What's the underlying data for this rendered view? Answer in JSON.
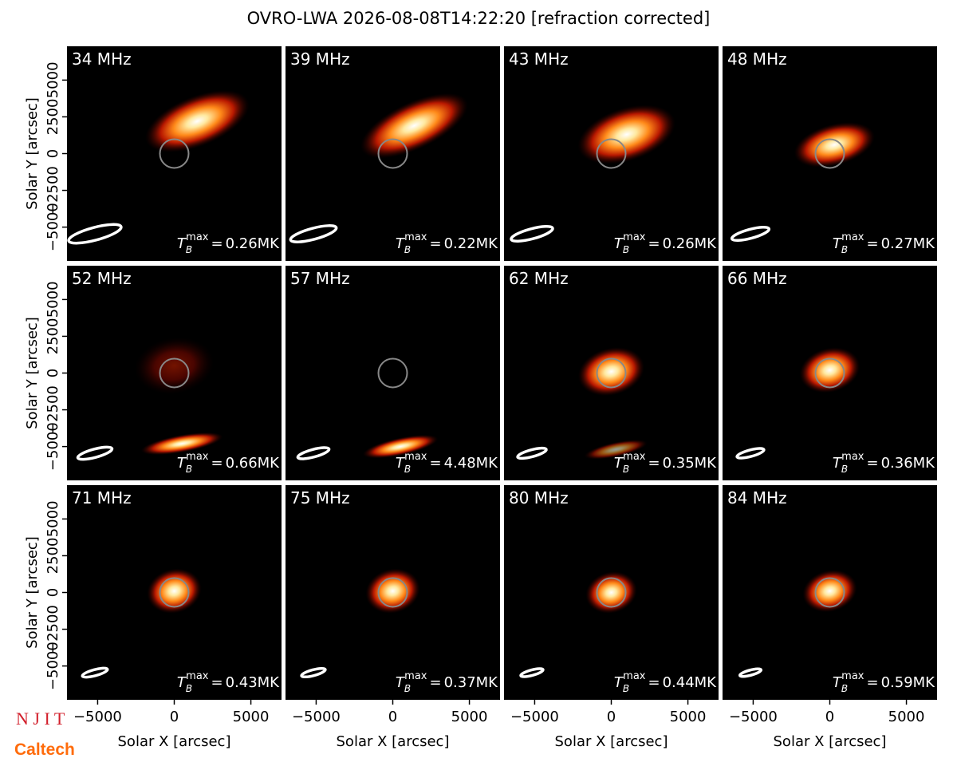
{
  "chart_data": {
    "type": "image-grid",
    "title": "OVRO-LWA 2026-08-08T14:22:20 [refraction corrected]",
    "xlabel": "Solar X [arcsec]",
    "ylabel": "Solar Y [arcsec]",
    "xlim": [
      -7000,
      7000
    ],
    "ylim": [
      -7300,
      7300
    ],
    "xticks": [
      {
        "value": -5000,
        "label": "−5000"
      },
      0,
      5000
    ],
    "yticks": [
      {
        "value": -5000,
        "label": "−5000"
      },
      {
        "value": -2500,
        "label": "−2500"
      },
      0,
      2500,
      5000
    ],
    "tmax_symbol": {
      "base": "T",
      "sub": "B",
      "sup": "max",
      "eq": "="
    },
    "logos": [
      "N J I T",
      "Caltech"
    ],
    "panels": [
      {
        "freq": {
          "value": 34,
          "label": "34 MHz"
        },
        "tmax": "0.26MK",
        "sources": [
          {
            "x": 1500,
            "y": 2200,
            "sx": 3600,
            "sy": 1700,
            "tilt": 22,
            "intensity": 1
          }
        ]
      },
      {
        "freq": {
          "value": 39,
          "label": "39 MHz"
        },
        "tmax": "0.22MK",
        "sources": [
          {
            "x": 1400,
            "y": 1900,
            "sx": 3800,
            "sy": 1600,
            "tilt": 25,
            "intensity": 1
          }
        ]
      },
      {
        "freq": {
          "value": 43,
          "label": "43 MHz"
        },
        "tmax": "0.26MK",
        "sources": [
          {
            "x": 1000,
            "y": 1300,
            "sx": 3300,
            "sy": 1800,
            "tilt": 18,
            "intensity": 1
          }
        ]
      },
      {
        "freq": {
          "value": 48,
          "label": "48 MHz"
        },
        "tmax": "0.27MK",
        "sources": [
          {
            "x": 300,
            "y": 600,
            "sx": 2700,
            "sy": 1400,
            "tilt": 15,
            "intensity": 1
          }
        ]
      },
      {
        "freq": {
          "value": 52,
          "label": "52 MHz"
        },
        "tmax": "0.66MK",
        "sources": [
          {
            "x": 0,
            "y": 500,
            "sx": 2600,
            "sy": 1900,
            "tilt": 10,
            "intensity": 0.45
          },
          {
            "x": 500,
            "y": -4800,
            "sx": 2700,
            "sy": 600,
            "tilt": 10,
            "intensity": 1
          }
        ]
      },
      {
        "freq": {
          "value": 57,
          "label": "57 MHz"
        },
        "tmax": "4.48MK",
        "sources": [
          {
            "x": 500,
            "y": -5000,
            "sx": 2500,
            "sy": 600,
            "tilt": 12,
            "intensity": 1
          }
        ]
      },
      {
        "freq": {
          "value": 62,
          "label": "62 MHz"
        },
        "tmax": "0.35MK",
        "sources": [
          {
            "x": 0,
            "y": 100,
            "sx": 2200,
            "sy": 1600,
            "tilt": 15,
            "intensity": 1
          },
          {
            "x": 300,
            "y": -5200,
            "sx": 2100,
            "sy": 500,
            "tilt": 12,
            "intensity": 0.6
          }
        ]
      },
      {
        "freq": {
          "value": 66,
          "label": "66 MHz"
        },
        "tmax": "0.36MK",
        "sources": [
          {
            "x": 0,
            "y": 200,
            "sx": 2000,
            "sy": 1500,
            "tilt": 15,
            "intensity": 1
          }
        ]
      },
      {
        "freq": {
          "value": 71,
          "label": "71 MHz"
        },
        "tmax": "0.43MK",
        "sources": [
          {
            "x": 0,
            "y": 100,
            "sx": 1800,
            "sy": 1500,
            "tilt": 15,
            "intensity": 1
          }
        ]
      },
      {
        "freq": {
          "value": 75,
          "label": "75 MHz"
        },
        "tmax": "0.37MK",
        "sources": [
          {
            "x": 0,
            "y": 100,
            "sx": 1800,
            "sy": 1500,
            "tilt": 15,
            "intensity": 1
          }
        ]
      },
      {
        "freq": {
          "value": 80,
          "label": "80 MHz"
        },
        "tmax": "0.44MK",
        "sources": [
          {
            "x": 0,
            "y": 0,
            "sx": 1700,
            "sy": 1400,
            "tilt": 15,
            "intensity": 1
          }
        ]
      },
      {
        "freq": {
          "value": 84,
          "label": "84 MHz"
        },
        "tmax": "0.59MK",
        "sources": [
          {
            "x": 0,
            "y": 100,
            "sx": 1800,
            "sy": 1400,
            "tilt": 15,
            "intensity": 1
          }
        ]
      }
    ]
  }
}
